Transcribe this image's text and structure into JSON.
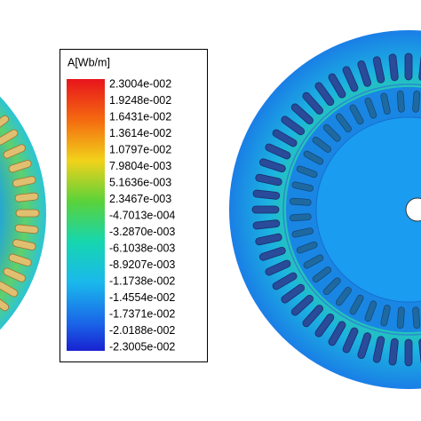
{
  "legend": {
    "title": "A[Wb/m]",
    "labels": [
      "2.3004e-002",
      "1.9248e-002",
      "1.6431e-002",
      "1.3614e-002",
      "1.0797e-002",
      "7.9804e-003",
      "5.1636e-003",
      "2.3467e-003",
      "-4.7013e-004",
      "-3.2870e-003",
      "-6.1038e-003",
      "-8.9207e-003",
      "-1.1738e-002",
      "-1.4554e-002",
      "-1.7371e-002",
      "-2.0188e-002",
      "-2.3005e-002"
    ]
  }
}
